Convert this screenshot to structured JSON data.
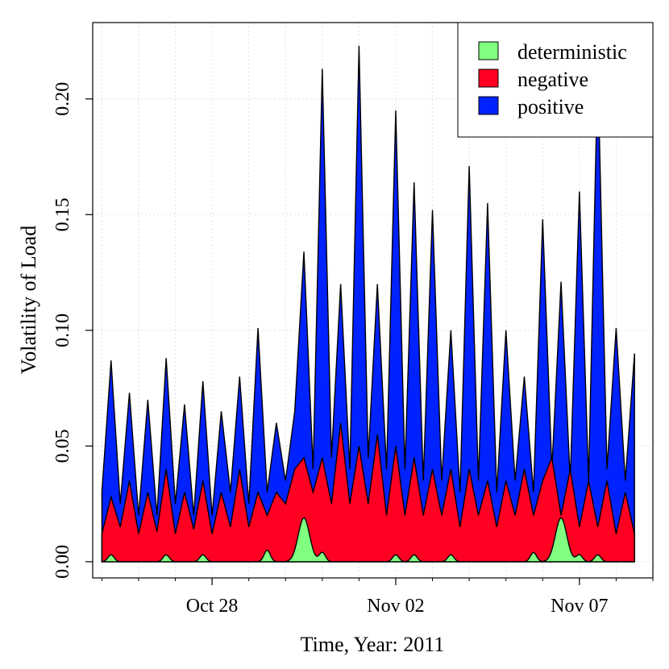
{
  "chart_data": {
    "type": "area",
    "stacked": true,
    "title": "",
    "xlabel": "Time, Year: 2011",
    "ylabel": "Volatility of Load",
    "x_start": "2011-10-25",
    "x_end": "2011-11-08",
    "xlim": [
      "2011-10-24 18:00",
      "2011-11-09 00:00"
    ],
    "ylim": [
      -0.007,
      0.233
    ],
    "x_ticks": [
      {
        "date": "2011-10-28",
        "label": "Oct 28"
      },
      {
        "date": "2011-11-02",
        "label": "Nov 02"
      },
      {
        "date": "2011-11-07",
        "label": "Nov 07"
      }
    ],
    "x_minor_tick_days": [
      25,
      26,
      27,
      28,
      29,
      30,
      31,
      32,
      33,
      34,
      35,
      36,
      37,
      38,
      39,
      40
    ],
    "y_ticks": [
      {
        "value": 0.0,
        "label": "0.00"
      },
      {
        "value": 0.05,
        "label": "0.05"
      },
      {
        "value": 0.1,
        "label": "0.10"
      },
      {
        "value": 0.15,
        "label": "0.15"
      },
      {
        "value": 0.2,
        "label": "0.20"
      }
    ],
    "grid": true,
    "legend": {
      "position": "top-right",
      "entries": [
        {
          "label": "deterministic",
          "color": "#80ff80"
        },
        {
          "label": "negative",
          "color": "#ff0022"
        },
        {
          "label": "positive",
          "color": "#0022ff"
        }
      ]
    },
    "series": [
      {
        "name": "deterministic",
        "color": "#80ff80",
        "note_cumulative": "Stacked: bottom layer",
        "bumps": [
          {
            "date": "2011-10-25 06:00",
            "peak": 0.003
          },
          {
            "date": "2011-10-26 18:00",
            "peak": 0.003
          },
          {
            "date": "2011-10-27 18:00",
            "peak": 0.003
          },
          {
            "date": "2011-10-29 12:00",
            "peak": 0.005
          },
          {
            "date": "2011-10-30 12:00",
            "peak": 0.019
          },
          {
            "date": "2011-10-31 00:00",
            "peak": 0.004
          },
          {
            "date": "2011-11-02 00:00",
            "peak": 0.003
          },
          {
            "date": "2011-11-02 12:00",
            "peak": 0.003
          },
          {
            "date": "2011-11-03 12:00",
            "peak": 0.003
          },
          {
            "date": "2011-11-05 18:00",
            "peak": 0.004
          },
          {
            "date": "2011-11-06 12:00",
            "peak": 0.019
          },
          {
            "date": "2011-11-07 00:00",
            "peak": 0.003
          },
          {
            "date": "2011-11-07 12:00",
            "peak": 0.003
          }
        ]
      },
      {
        "name": "negative",
        "color": "#ff0022",
        "cumulative_top_points": [
          [
            "2011-10-25 00:00",
            0.012
          ],
          [
            "2011-10-25 06:00",
            0.028
          ],
          [
            "2011-10-25 12:00",
            0.015
          ],
          [
            "2011-10-25 18:00",
            0.035
          ],
          [
            "2011-10-26 00:00",
            0.012
          ],
          [
            "2011-10-26 06:00",
            0.03
          ],
          [
            "2011-10-26 12:00",
            0.013
          ],
          [
            "2011-10-26 18:00",
            0.04
          ],
          [
            "2011-10-27 00:00",
            0.012
          ],
          [
            "2011-10-27 06:00",
            0.03
          ],
          [
            "2011-10-27 12:00",
            0.014
          ],
          [
            "2011-10-27 18:00",
            0.035
          ],
          [
            "2011-10-28 00:00",
            0.012
          ],
          [
            "2011-10-28 06:00",
            0.03
          ],
          [
            "2011-10-28 12:00",
            0.015
          ],
          [
            "2011-10-28 18:00",
            0.04
          ],
          [
            "2011-10-29 00:00",
            0.015
          ],
          [
            "2011-10-29 06:00",
            0.03
          ],
          [
            "2011-10-29 12:00",
            0.02
          ],
          [
            "2011-10-29 18:00",
            0.03
          ],
          [
            "2011-10-30 00:00",
            0.025
          ],
          [
            "2011-10-30 06:00",
            0.04
          ],
          [
            "2011-10-30 12:00",
            0.045
          ],
          [
            "2011-10-30 18:00",
            0.03
          ],
          [
            "2011-10-31 00:00",
            0.045
          ],
          [
            "2011-10-31 06:00",
            0.025
          ],
          [
            "2011-10-31 12:00",
            0.06
          ],
          [
            "2011-10-31 18:00",
            0.025
          ],
          [
            "2011-11-01 00:00",
            0.05
          ],
          [
            "2011-11-01 06:00",
            0.025
          ],
          [
            "2011-11-01 12:00",
            0.055
          ],
          [
            "2011-11-01 18:00",
            0.02
          ],
          [
            "2011-11-02 00:00",
            0.05
          ],
          [
            "2011-11-02 06:00",
            0.02
          ],
          [
            "2011-11-02 12:00",
            0.045
          ],
          [
            "2011-11-02 18:00",
            0.02
          ],
          [
            "2011-11-03 00:00",
            0.04
          ],
          [
            "2011-11-03 06:00",
            0.02
          ],
          [
            "2011-11-03 12:00",
            0.04
          ],
          [
            "2011-11-03 18:00",
            0.015
          ],
          [
            "2011-11-04 00:00",
            0.04
          ],
          [
            "2011-11-04 06:00",
            0.02
          ],
          [
            "2011-11-04 12:00",
            0.035
          ],
          [
            "2011-11-04 18:00",
            0.015
          ],
          [
            "2011-11-05 00:00",
            0.035
          ],
          [
            "2011-11-05 06:00",
            0.02
          ],
          [
            "2011-11-05 12:00",
            0.04
          ],
          [
            "2011-11-05 18:00",
            0.02
          ],
          [
            "2011-11-06 00:00",
            0.035
          ],
          [
            "2011-11-06 06:00",
            0.045
          ],
          [
            "2011-11-06 12:00",
            0.02
          ],
          [
            "2011-11-06 18:00",
            0.04
          ],
          [
            "2011-11-07 00:00",
            0.015
          ],
          [
            "2011-11-07 06:00",
            0.035
          ],
          [
            "2011-11-07 12:00",
            0.015
          ],
          [
            "2011-11-07 18:00",
            0.035
          ],
          [
            "2011-11-08 00:00",
            0.012
          ],
          [
            "2011-11-08 06:00",
            0.03
          ],
          [
            "2011-11-08 12:00",
            0.012
          ]
        ]
      },
      {
        "name": "positive",
        "color": "#0022ff",
        "cumulative_top_points": [
          [
            "2011-10-25 00:00",
            0.03
          ],
          [
            "2011-10-25 06:00",
            0.087
          ],
          [
            "2011-10-25 12:00",
            0.025
          ],
          [
            "2011-10-25 18:00",
            0.073
          ],
          [
            "2011-10-26 00:00",
            0.02
          ],
          [
            "2011-10-26 06:00",
            0.07
          ],
          [
            "2011-10-26 12:00",
            0.02
          ],
          [
            "2011-10-26 18:00",
            0.088
          ],
          [
            "2011-10-27 00:00",
            0.025
          ],
          [
            "2011-10-27 06:00",
            0.068
          ],
          [
            "2011-10-27 12:00",
            0.02
          ],
          [
            "2011-10-27 18:00",
            0.078
          ],
          [
            "2011-10-28 00:00",
            0.02
          ],
          [
            "2011-10-28 06:00",
            0.065
          ],
          [
            "2011-10-28 12:00",
            0.03
          ],
          [
            "2011-10-28 18:00",
            0.08
          ],
          [
            "2011-10-29 00:00",
            0.025
          ],
          [
            "2011-10-29 06:00",
            0.101
          ],
          [
            "2011-10-29 12:00",
            0.03
          ],
          [
            "2011-10-29 18:00",
            0.06
          ],
          [
            "2011-10-30 00:00",
            0.035
          ],
          [
            "2011-10-30 06:00",
            0.065
          ],
          [
            "2011-10-30 12:00",
            0.134
          ],
          [
            "2011-10-30 18:00",
            0.04
          ],
          [
            "2011-10-31 00:00",
            0.213
          ],
          [
            "2011-10-31 06:00",
            0.045
          ],
          [
            "2011-10-31 12:00",
            0.12
          ],
          [
            "2011-10-31 18:00",
            0.04
          ],
          [
            "2011-11-01 00:00",
            0.223
          ],
          [
            "2011-11-01 06:00",
            0.045
          ],
          [
            "2011-11-01 12:00",
            0.12
          ],
          [
            "2011-11-01 18:00",
            0.04
          ],
          [
            "2011-11-02 00:00",
            0.195
          ],
          [
            "2011-11-02 06:00",
            0.04
          ],
          [
            "2011-11-02 12:00",
            0.164
          ],
          [
            "2011-11-02 18:00",
            0.035
          ],
          [
            "2011-11-03 00:00",
            0.152
          ],
          [
            "2011-11-03 06:00",
            0.035
          ],
          [
            "2011-11-03 12:00",
            0.1
          ],
          [
            "2011-11-03 18:00",
            0.03
          ],
          [
            "2011-11-04 00:00",
            0.171
          ],
          [
            "2011-11-04 06:00",
            0.035
          ],
          [
            "2011-11-04 12:00",
            0.155
          ],
          [
            "2011-11-04 18:00",
            0.03
          ],
          [
            "2011-11-05 00:00",
            0.1
          ],
          [
            "2011-11-05 06:00",
            0.035
          ],
          [
            "2011-11-05 12:00",
            0.08
          ],
          [
            "2011-11-05 18:00",
            0.03
          ],
          [
            "2011-11-06 00:00",
            0.148
          ],
          [
            "2011-11-06 06:00",
            0.04
          ],
          [
            "2011-11-06 12:00",
            0.121
          ],
          [
            "2011-11-06 18:00",
            0.035
          ],
          [
            "2011-11-07 00:00",
            0.16
          ],
          [
            "2011-11-07 06:00",
            0.035
          ],
          [
            "2011-11-07 12:00",
            0.215
          ],
          [
            "2011-11-07 18:00",
            0.04
          ],
          [
            "2011-11-08 00:00",
            0.101
          ],
          [
            "2011-11-08 06:00",
            0.035
          ],
          [
            "2011-11-08 12:00",
            0.09
          ]
        ]
      }
    ]
  }
}
